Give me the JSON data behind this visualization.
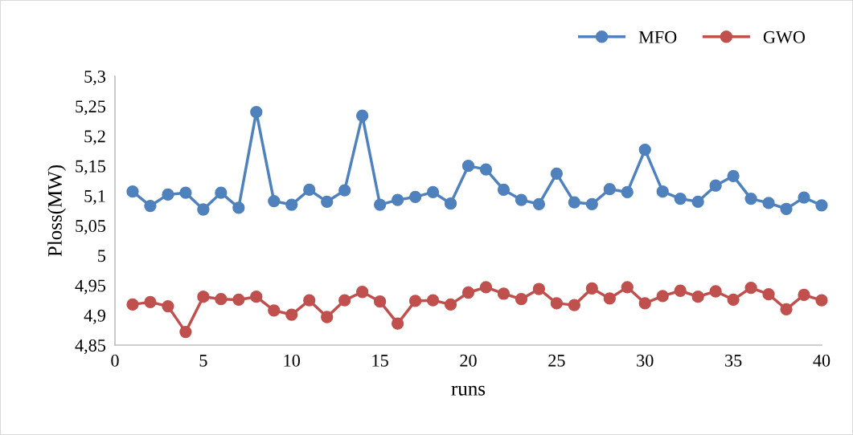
{
  "chart_data": {
    "type": "line",
    "xlabel": "runs",
    "ylabel": "Ploss(MW)",
    "x": [
      1,
      2,
      3,
      4,
      5,
      6,
      7,
      8,
      9,
      10,
      11,
      12,
      13,
      14,
      15,
      16,
      17,
      18,
      19,
      20,
      21,
      22,
      23,
      24,
      25,
      26,
      27,
      28,
      29,
      30,
      31,
      32,
      33,
      34,
      35,
      36,
      37,
      38,
      39,
      40
    ],
    "series": [
      {
        "name": "MFO",
        "color": "#4f81bd",
        "values": [
          5.107,
          5.083,
          5.102,
          5.105,
          5.077,
          5.105,
          5.08,
          5.24,
          5.091,
          5.085,
          5.11,
          5.09,
          5.109,
          5.234,
          5.085,
          5.093,
          5.098,
          5.106,
          5.087,
          5.15,
          5.144,
          5.11,
          5.093,
          5.086,
          5.137,
          5.089,
          5.086,
          5.111,
          5.106,
          5.177,
          5.107,
          5.095,
          5.09,
          5.117,
          5.133,
          5.095,
          5.088,
          5.078,
          5.097,
          5.084
        ]
      },
      {
        "name": "GWO",
        "color": "#c0504d",
        "values": [
          4.918,
          4.922,
          4.915,
          4.872,
          4.931,
          4.927,
          4.926,
          4.931,
          4.908,
          4.901,
          4.925,
          4.897,
          4.925,
          4.939,
          4.923,
          4.886,
          4.924,
          4.925,
          4.918,
          4.938,
          4.947,
          4.936,
          4.927,
          4.944,
          4.92,
          4.917,
          4.945,
          4.928,
          4.947,
          4.92,
          4.932,
          4.941,
          4.931,
          4.94,
          4.926,
          4.946,
          4.935,
          4.91,
          4.934,
          4.925
        ]
      }
    ],
    "xlim": [
      0,
      40
    ],
    "xticks": [
      0,
      5,
      10,
      15,
      20,
      25,
      30,
      35,
      40
    ],
    "ylim": [
      4.85,
      5.3
    ],
    "yticks": [
      {
        "value": 4.85,
        "label": "4,85"
      },
      {
        "value": 4.9,
        "label": "4,9"
      },
      {
        "value": 4.95,
        "label": "4,95"
      },
      {
        "value": 5,
        "label": "5"
      },
      {
        "value": 5.05,
        "label": "5,05"
      },
      {
        "value": 5.1,
        "label": "5,1"
      },
      {
        "value": 5.15,
        "label": "5,15"
      },
      {
        "value": 5.2,
        "label": "5,2"
      },
      {
        "value": 5.25,
        "label": "5,25"
      },
      {
        "value": 5.3,
        "label": "5,3"
      }
    ],
    "marker": "circle",
    "line_style": "solid",
    "legend": "top right",
    "grid": false
  }
}
